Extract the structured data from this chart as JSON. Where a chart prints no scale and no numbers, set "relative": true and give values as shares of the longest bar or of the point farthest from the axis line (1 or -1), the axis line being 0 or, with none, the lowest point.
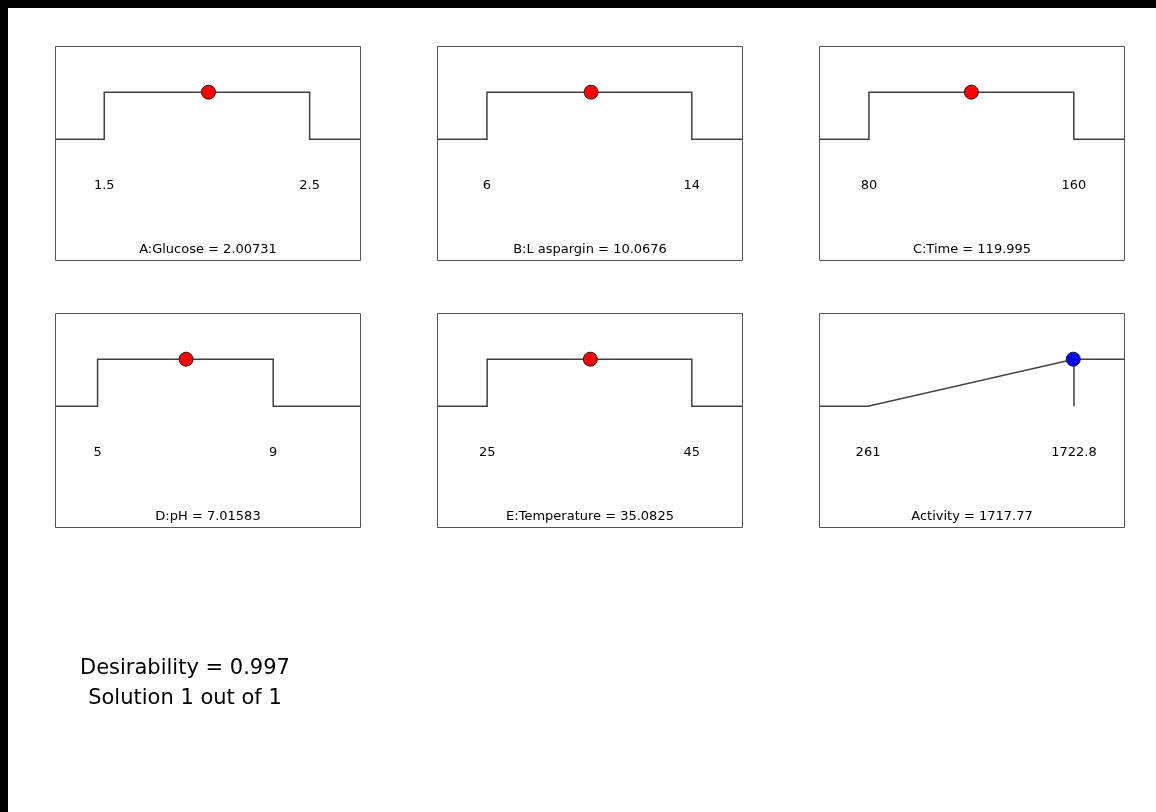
{
  "chart_data": [
    {
      "type": "line",
      "relative": true,
      "xlabel": "A:Glucose = 2.00731",
      "xlim": [
        1.26,
        2.75
      ],
      "xticks": [
        1.5,
        2.5
      ],
      "series": [
        {
          "color": "#404040",
          "marker": "none",
          "x": [
            1.26,
            1.5,
            1.5,
            2.5,
            2.5,
            2.75
          ],
          "values": [
            0,
            0,
            1,
            1,
            0,
            0
          ]
        },
        {
          "type": "scatter",
          "color": "#ff0000",
          "marker": "circle",
          "x": [
            2.00731
          ],
          "values": [
            1
          ]
        }
      ]
    },
    {
      "type": "line",
      "relative": true,
      "xlabel": "B:L aspargin = 10.0676",
      "xlim": [
        4.05,
        16
      ],
      "xticks": [
        6,
        14
      ],
      "series": [
        {
          "color": "#404040",
          "marker": "none",
          "x": [
            4.05,
            6,
            6,
            14,
            14,
            16
          ],
          "values": [
            0,
            0,
            1,
            1,
            0,
            0
          ]
        },
        {
          "type": "scatter",
          "color": "#ff0000",
          "marker": "circle",
          "x": [
            10.0676
          ],
          "values": [
            1
          ]
        }
      ]
    },
    {
      "type": "line",
      "relative": true,
      "xlabel": "C:Time = 119.995",
      "xlim": [
        60.5,
        180
      ],
      "xticks": [
        80,
        160
      ],
      "series": [
        {
          "color": "#404040",
          "marker": "none",
          "x": [
            60.5,
            80,
            80,
            160,
            160,
            180
          ],
          "values": [
            0,
            0,
            1,
            1,
            0,
            0
          ]
        },
        {
          "type": "scatter",
          "color": "#ff0000",
          "marker": "circle",
          "x": [
            119.995
          ],
          "values": [
            1
          ]
        }
      ]
    },
    {
      "type": "line",
      "relative": true,
      "xlabel": "D:pH = 7.01583",
      "xlim": [
        4.03,
        11
      ],
      "xticks": [
        5,
        9
      ],
      "series": [
        {
          "color": "#404040",
          "marker": "none",
          "x": [
            4.03,
            5,
            5,
            9,
            9,
            11
          ],
          "values": [
            0,
            0,
            1,
            1,
            0,
            0
          ]
        },
        {
          "type": "scatter",
          "color": "#ff0000",
          "marker": "circle",
          "x": [
            7.01583
          ],
          "values": [
            1
          ]
        }
      ]
    },
    {
      "type": "line",
      "relative": true,
      "xlabel": "E:Temperature = 35.0825",
      "xlim": [
        20.1,
        50
      ],
      "xticks": [
        25,
        45
      ],
      "series": [
        {
          "color": "#404040",
          "marker": "none",
          "x": [
            20.1,
            25,
            25,
            45,
            45,
            50
          ],
          "values": [
            0,
            0,
            1,
            1,
            0,
            0
          ]
        },
        {
          "type": "scatter",
          "color": "#ff0000",
          "marker": "circle",
          "x": [
            35.0825
          ],
          "values": [
            1
          ]
        }
      ]
    },
    {
      "type": "line",
      "relative": true,
      "xlabel": "Activity = 1717.77",
      "xlim": [
        -87,
        2085
      ],
      "xticks": [
        261,
        1722.8
      ],
      "series": [
        {
          "color": "#404040",
          "marker": "none",
          "x": [
            -87,
            261,
            1722.8,
            1722.8,
            1722.8,
            2085
          ],
          "values": [
            0,
            0,
            1,
            0,
            1,
            1
          ]
        },
        {
          "type": "scatter",
          "color": "#0000ff",
          "marker": "circle",
          "x": [
            1717.77
          ],
          "values": [
            1
          ]
        }
      ]
    },
    {
      "type": "other",
      "annotations": [
        "Desirability = 0.997",
        "Solution 1 out of 1"
      ]
    }
  ]
}
